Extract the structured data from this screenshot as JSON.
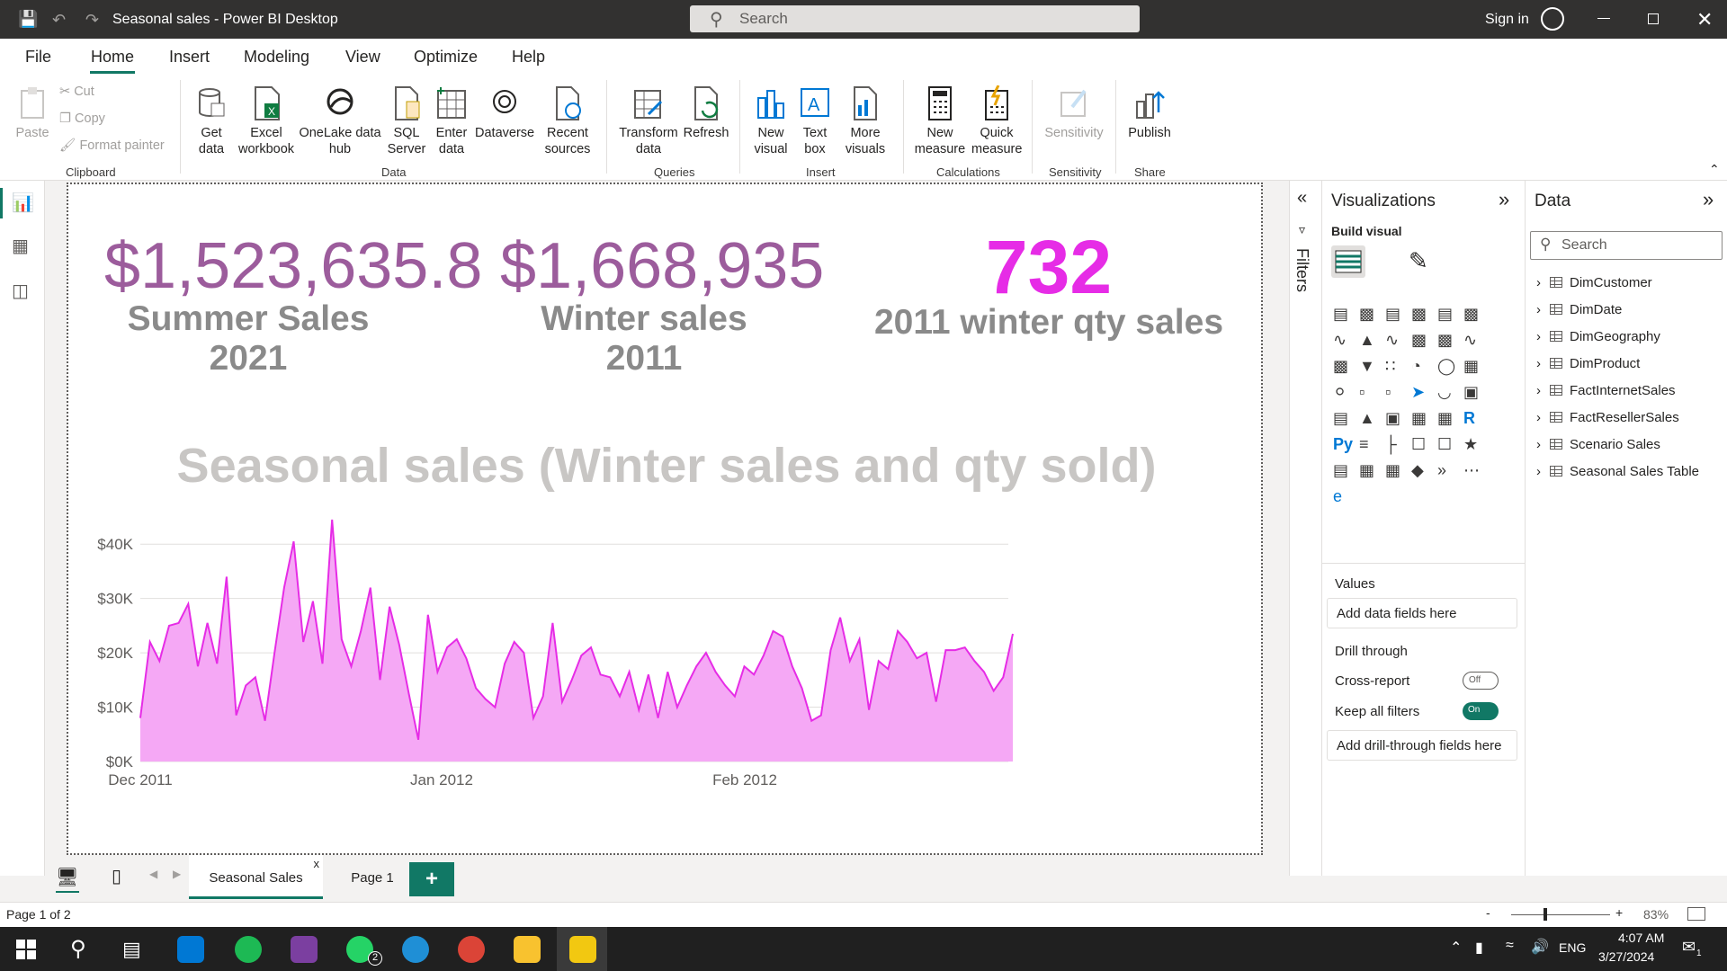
{
  "app": {
    "title": "Seasonal sales - Power BI Desktop",
    "search_placeholder": "Search",
    "sign_in": "Sign in"
  },
  "menu": [
    "File",
    "Home",
    "Insert",
    "Modeling",
    "View",
    "Optimize",
    "Help"
  ],
  "ribbon": {
    "clipboard": {
      "paste": "Paste",
      "cut": "Cut",
      "copy": "Copy",
      "format_painter": "Format painter",
      "group": "Clipboard"
    },
    "data": {
      "get_data": "Get data",
      "excel": "Excel workbook",
      "onelake": "OneLake data hub",
      "sql": "SQL Server",
      "enter": "Enter data",
      "dataverse": "Dataverse",
      "recent": "Recent sources",
      "group": "Data"
    },
    "queries": {
      "transform": "Transform data",
      "refresh": "Refresh",
      "group": "Queries"
    },
    "insert": {
      "new_visual": "New visual",
      "text_box": "Text box",
      "more_visuals": "More visuals",
      "group": "Insert"
    },
    "calculations": {
      "new_measure": "New measure",
      "quick_measure": "Quick measure",
      "group": "Calculations"
    },
    "sensitivity": {
      "label": "Sensitivity",
      "group": "Sensitivity"
    },
    "share": {
      "publish": "Publish",
      "group": "Share"
    }
  },
  "cards": [
    {
      "value": "$1,523,635.8",
      "label": "Summer Sales 2021",
      "color": "#9c5c9c"
    },
    {
      "value": "$1,668,935",
      "label": "Winter sales 2011",
      "color": "#9c5c9c"
    },
    {
      "value": "732",
      "label": "2011 winter qty sales",
      "color": "#e62ce6"
    }
  ],
  "chart_data": {
    "type": "area",
    "title": "Seasonal sales (Winter sales and qty sold)",
    "y_ticks": [
      "$0K",
      "$10K",
      "$20K",
      "$30K",
      "$40K"
    ],
    "x_ticks": [
      "Dec 2011",
      "Jan 2012",
      "Feb 2012"
    ],
    "ylim": [
      0,
      45000
    ],
    "xlabel": "",
    "ylabel": "",
    "color": "#e62ce6",
    "fill": "#f5a8f5",
    "grid": true,
    "values": [
      8000,
      22000,
      18500,
      25000,
      25500,
      29000,
      17500,
      25500,
      18000,
      34000,
      8500,
      14000,
      15500,
      7500,
      20000,
      32000,
      40500,
      22000,
      29500,
      18000,
      44500,
      22500,
      17500,
      24000,
      32000,
      15000,
      28500,
      21500,
      12500,
      4000,
      27000,
      16500,
      21000,
      22500,
      19000,
      13500,
      11500,
      10000,
      18000,
      22000,
      20000,
      8000,
      12000,
      25500,
      11000,
      15000,
      19500,
      21000,
      16000,
      15500,
      12000,
      16500,
      9500,
      16000,
      8000,
      16500,
      10000,
      14000,
      17500,
      20000,
      16500,
      14000,
      12000,
      17500,
      16000,
      19500,
      24000,
      23000,
      17500,
      13500,
      7500,
      8500,
      20500,
      26500,
      18500,
      22500,
      9500,
      18500,
      17000,
      24000,
      22000,
      19000,
      20000,
      11000,
      20500,
      20500,
      21000,
      18500,
      16500,
      13000,
      15500,
      23500
    ]
  },
  "filters": {
    "label": "Filters"
  },
  "visualizations": {
    "title": "Visualizations",
    "build_visual": "Build visual",
    "values_label": "Values",
    "add_data": "Add data fields here",
    "drill_through": "Drill through",
    "cross_report": "Cross-report",
    "cross_report_state": "Off",
    "keep_filters": "Keep all filters",
    "keep_filters_state": "On",
    "add_drill": "Add drill-through fields here"
  },
  "data_pane": {
    "title": "Data",
    "search_placeholder": "Search",
    "tables": [
      "DimCustomer",
      "DimDate",
      "DimGeography",
      "DimProduct",
      "FactInternetSales",
      "FactResellerSales",
      "Scenario Sales",
      "Seasonal Sales Table"
    ]
  },
  "pages": {
    "tabs": [
      "Seasonal Sales",
      "Page 1"
    ],
    "add": "+"
  },
  "status": {
    "page": "Page 1 of 2",
    "zoom": "83%"
  },
  "taskbar": {
    "lang": "ENG",
    "time": "4:07 AM",
    "date": "3/27/2024",
    "notif": "1",
    "whatsapp_badge": "2"
  }
}
